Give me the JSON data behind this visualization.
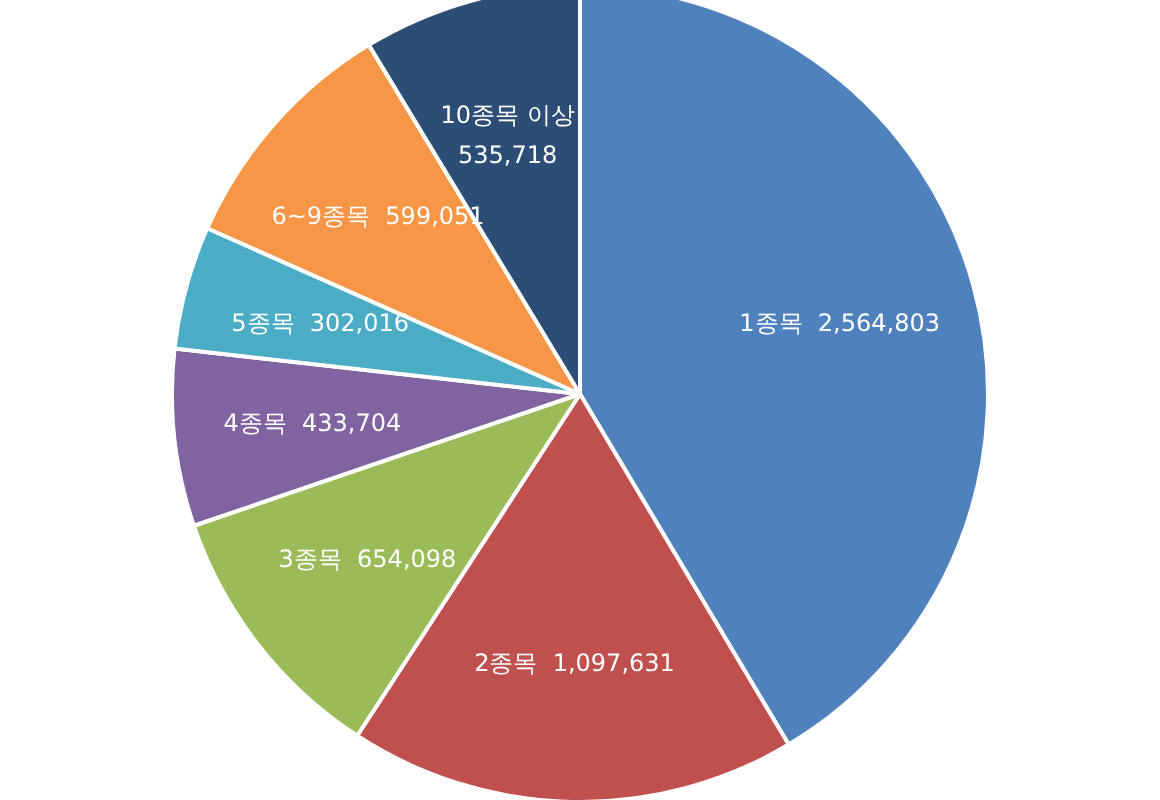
{
  "chart_data": {
    "type": "pie",
    "categories": [
      "1종목",
      "2종목",
      "3종목",
      "4종목",
      "5종목",
      "6~9종목",
      "10종목 이상"
    ],
    "values": [
      2564803,
      1097631,
      654098,
      433704,
      302016,
      599051,
      535718
    ],
    "colors": [
      "#4f81bd",
      "#c0504d",
      "#9bbb59",
      "#8064a2",
      "#4bacc6",
      "#f79646",
      "#2c4d75"
    ],
    "value_labels": [
      "2,564,803",
      "1,097,631",
      "654,098",
      "433,704",
      "302,016",
      "599,051",
      "535,718"
    ],
    "legend": false
  }
}
